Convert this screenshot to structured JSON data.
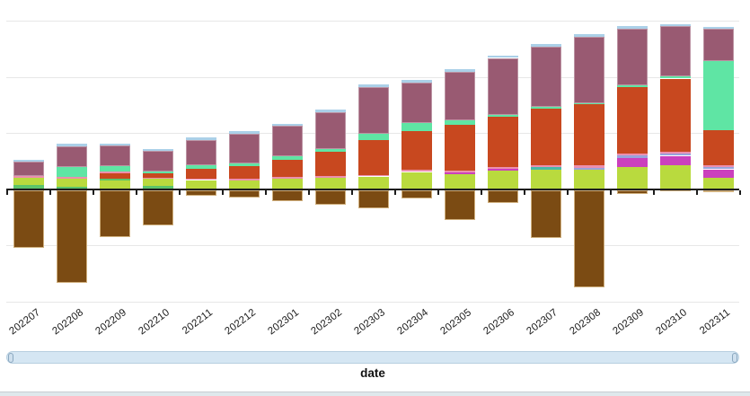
{
  "chart_data": {
    "type": "bar",
    "variant": "stacked_with_negative_values",
    "title": "",
    "xlabel": "date",
    "ylabel": "",
    "y_axis_labels_visible": false,
    "legend_visible": false,
    "grid": true,
    "value_units": "screen px (no numeric y-axis shown); baseline y=210.5, gridline spacing ~62.5",
    "categories": [
      "202207",
      "202208",
      "202209",
      "202210",
      "202211",
      "202212",
      "202301",
      "202302",
      "202303",
      "202304",
      "202305",
      "202306",
      "202307",
      "202308",
      "202309",
      "202310",
      "202311"
    ],
    "series_colors": {
      "lime": "#b9da3e",
      "green": "#5cc46a",
      "teal": "#49b8a8",
      "magenta": "#cb40bd",
      "lavender": "#99a3dc",
      "pink": "#ec8fae",
      "red": "#c8481f",
      "mint": "#5fe5a4",
      "mauve": "#995a72",
      "sky": "#abd0e8",
      "brown": "#7b4b13"
    },
    "negative_series": "brown",
    "bars": [
      {
        "category": "202207",
        "segments": [
          [
            "green",
            4.5
          ],
          [
            "lime",
            8
          ],
          [
            "pink",
            1.8
          ],
          [
            "mauve",
            16
          ],
          [
            "sky",
            2.5
          ]
        ],
        "negative": 64
      },
      {
        "category": "202208",
        "segments": [
          [
            "green",
            2.5
          ],
          [
            "lime",
            9
          ],
          [
            "pink",
            2
          ],
          [
            "mint",
            11
          ],
          [
            "mauve",
            23.5
          ],
          [
            "sky",
            2.5
          ]
        ],
        "negative": 103
      },
      {
        "category": "202209",
        "segments": [
          [
            "lime",
            9.5
          ],
          [
            "green",
            2.5
          ],
          [
            "red",
            6
          ],
          [
            "pink",
            1.5
          ],
          [
            "mint",
            6
          ],
          [
            "mauve",
            23
          ],
          [
            "sky",
            2.5
          ]
        ],
        "negative": 52
      },
      {
        "category": "202210",
        "segments": [
          [
            "green",
            4
          ],
          [
            "lime",
            7.5
          ],
          [
            "pink",
            1.5
          ],
          [
            "red",
            5
          ],
          [
            "mint",
            1.5
          ],
          [
            "mauve",
            23
          ],
          [
            "sky",
            2.5
          ]
        ],
        "negative": 39
      },
      {
        "category": "202211",
        "segments": [
          [
            "lime",
            10
          ],
          [
            "pink",
            1.2
          ],
          [
            "red",
            11
          ],
          [
            "mint",
            4
          ],
          [
            "mauve",
            28.5
          ],
          [
            "sky",
            2.5
          ]
        ],
        "negative": 6
      },
      {
        "category": "202212",
        "segments": [
          [
            "lime",
            10
          ],
          [
            "pink",
            1.5
          ],
          [
            "red",
            14.5
          ],
          [
            "mint",
            2.5
          ],
          [
            "mauve",
            33.5
          ],
          [
            "sky",
            2.5
          ]
        ],
        "negative": 8
      },
      {
        "category": "202301",
        "segments": [
          [
            "lime",
            12
          ],
          [
            "pink",
            1.5
          ],
          [
            "red",
            19.5
          ],
          [
            "mint",
            4
          ],
          [
            "mauve",
            33.5
          ],
          [
            "sky",
            2.5
          ]
        ],
        "negative": 12
      },
      {
        "category": "202302",
        "segments": [
          [
            "lime",
            13
          ],
          [
            "pink",
            1.5
          ],
          [
            "red",
            27.5
          ],
          [
            "mint",
            2.5
          ],
          [
            "mauve",
            41.5
          ],
          [
            "sky",
            2.5
          ]
        ],
        "negative": 16.5
      },
      {
        "category": "202303",
        "segments": [
          [
            "lime",
            14
          ],
          [
            "pink",
            1.7
          ],
          [
            "red",
            39
          ],
          [
            "mint",
            6.5
          ],
          [
            "mauve",
            52.5
          ],
          [
            "sky",
            2.6
          ]
        ],
        "negative": 20
      },
      {
        "category": "202304",
        "segments": [
          [
            "lime",
            19
          ],
          [
            "pink",
            2.2
          ],
          [
            "red",
            43
          ],
          [
            "mint",
            9.5
          ],
          [
            "mauve",
            45
          ],
          [
            "sky",
            2.6
          ]
        ],
        "negative": 9.5
      },
      {
        "category": "202305",
        "segments": [
          [
            "lime",
            17
          ],
          [
            "magenta",
            1.5
          ],
          [
            "pink",
            2
          ],
          [
            "red",
            51.5
          ],
          [
            "mint",
            5
          ],
          [
            "mauve",
            53.5
          ],
          [
            "sky",
            2.6
          ]
        ],
        "negative": 33.5
      },
      {
        "category": "202306",
        "segments": [
          [
            "lime",
            20.5
          ],
          [
            "magenta",
            2
          ],
          [
            "pink",
            2
          ],
          [
            "red",
            56.5
          ],
          [
            "mint",
            2
          ],
          [
            "mauve",
            63
          ],
          [
            "sky",
            2.6
          ]
        ],
        "negative": 14.5
      },
      {
        "category": "202307",
        "segments": [
          [
            "lime",
            22
          ],
          [
            "teal",
            2.5
          ],
          [
            "pink",
            2.2
          ],
          [
            "red",
            62.5
          ],
          [
            "mint",
            2
          ],
          [
            "mauve",
            67.5
          ],
          [
            "sky",
            2.6
          ]
        ],
        "negative": 53.5
      },
      {
        "category": "202308",
        "segments": [
          [
            "lime",
            21.5
          ],
          [
            "lavender",
            2.3
          ],
          [
            "pink",
            2.4
          ],
          [
            "red",
            68
          ],
          [
            "mint",
            1.2
          ],
          [
            "mauve",
            74.3
          ],
          [
            "sky",
            2.6
          ]
        ],
        "negative": 108
      },
      {
        "category": "202309",
        "segments": [
          [
            "lime",
            24.5
          ],
          [
            "magenta",
            10
          ],
          [
            "lavender",
            3.2
          ],
          [
            "pink",
            2
          ],
          [
            "red",
            73.5
          ],
          [
            "mint",
            2.3
          ],
          [
            "mauve",
            63.3
          ],
          [
            "sky",
            2.5
          ]
        ],
        "negative": 4.5
      },
      {
        "category": "202310",
        "segments": [
          [
            "lime",
            27
          ],
          [
            "magenta",
            10
          ],
          [
            "lavender",
            2.6
          ],
          [
            "pink",
            2.4
          ],
          [
            "red",
            81
          ],
          [
            "mint",
            2.6
          ],
          [
            "mauve",
            55.5
          ],
          [
            "sky",
            2.5
          ]
        ],
        "negative": 1
      },
      {
        "category": "202311",
        "segments": [
          [
            "lime",
            12.5
          ],
          [
            "magenta",
            9.5
          ],
          [
            "lavender",
            2.3
          ],
          [
            "pink",
            2.3
          ],
          [
            "red",
            38.5
          ],
          [
            "mint",
            77.5
          ],
          [
            "mauve",
            35.5
          ],
          [
            "sky",
            2.5
          ]
        ],
        "negative": 2.5
      }
    ]
  },
  "x_axis": {
    "label": "date"
  },
  "scrollbar": {
    "kind": "horizontal-date-range",
    "handles": [
      "left",
      "right"
    ]
  }
}
